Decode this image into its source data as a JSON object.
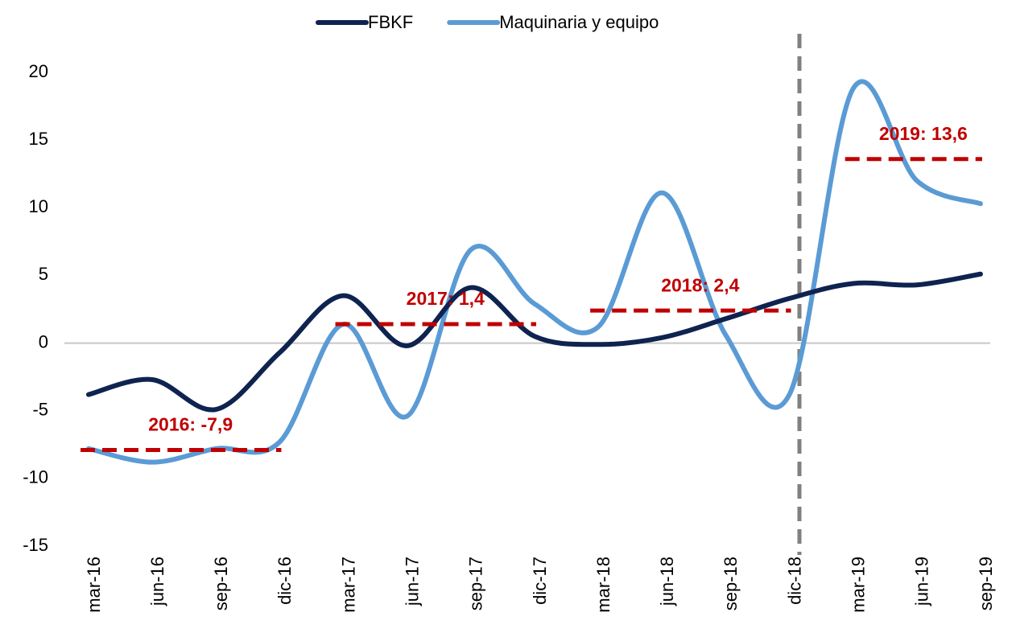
{
  "chart_data": {
    "type": "line",
    "categories": [
      "mar-16",
      "jun-16",
      "sep-16",
      "dic-16",
      "mar-17",
      "jun-17",
      "sep-17",
      "dic-17",
      "mar-18",
      "jun-18",
      "sep-18",
      "dic-18",
      "mar-19",
      "jun-19",
      "sep-19"
    ],
    "series": [
      {
        "name": "FBKF",
        "color": "#0f2350",
        "values": [
          -3.8,
          -2.7,
          -4.9,
          -0.7,
          3.5,
          -0.2,
          4.1,
          0.5,
          -0.1,
          0.4,
          1.8,
          3.3,
          4.4,
          4.3,
          5.1
        ]
      },
      {
        "name": "Maquinaria y equipo",
        "color": "#5b9bd5",
        "values": [
          -7.8,
          -8.8,
          -7.8,
          -7.3,
          1.4,
          -5.4,
          6.9,
          2.9,
          1.2,
          11.1,
          0.6,
          -3.8,
          18.8,
          12.0,
          10.3
        ]
      }
    ],
    "annotations": [
      {
        "label": "2016: -7,9",
        "value": -7.9,
        "from": "mar-16",
        "to": "dic-16"
      },
      {
        "label": "2017: 1,4",
        "value": 1.4,
        "from": "mar-17",
        "to": "dic-17"
      },
      {
        "label": "2018: 2,4",
        "value": 2.4,
        "from": "mar-18",
        "to": "dic-18"
      },
      {
        "label": "2019: 13,6",
        "value": 13.6,
        "from": "mar-19",
        "to": "sep-19"
      }
    ],
    "annotation_color": "#c00000",
    "ylim": [
      -15,
      20
    ],
    "yticks": [
      -15,
      -10,
      -5,
      0,
      5,
      10,
      15,
      20
    ],
    "zero_line": true,
    "legend": "top"
  }
}
